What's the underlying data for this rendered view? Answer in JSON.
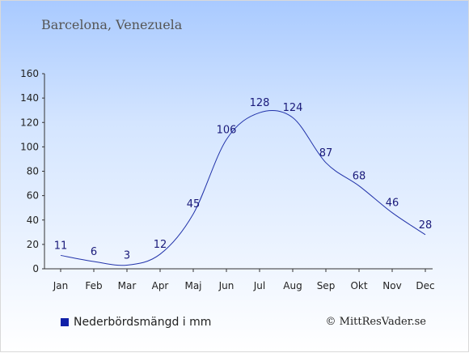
{
  "location": "Barcelona, Venezuela",
  "copyright": "© MittResVader.se",
  "colors": {
    "line": "#2233aa",
    "legend": "#1020a8"
  },
  "chart_data": {
    "type": "line",
    "categories": [
      "Jan",
      "Feb",
      "Mar",
      "Apr",
      "Maj",
      "Jun",
      "Jul",
      "Aug",
      "Sep",
      "Okt",
      "Nov",
      "Dec"
    ],
    "series": [
      {
        "name": "Nederbördsmängd i mm",
        "values": [
          11,
          6,
          3,
          12,
          45,
          106,
          128,
          124,
          87,
          68,
          46,
          28
        ]
      }
    ],
    "ylim": [
      0,
      160
    ],
    "yticks": [
      0,
      20,
      40,
      60,
      80,
      100,
      120,
      140,
      160
    ],
    "grid": false,
    "legend": "bottom-left"
  }
}
